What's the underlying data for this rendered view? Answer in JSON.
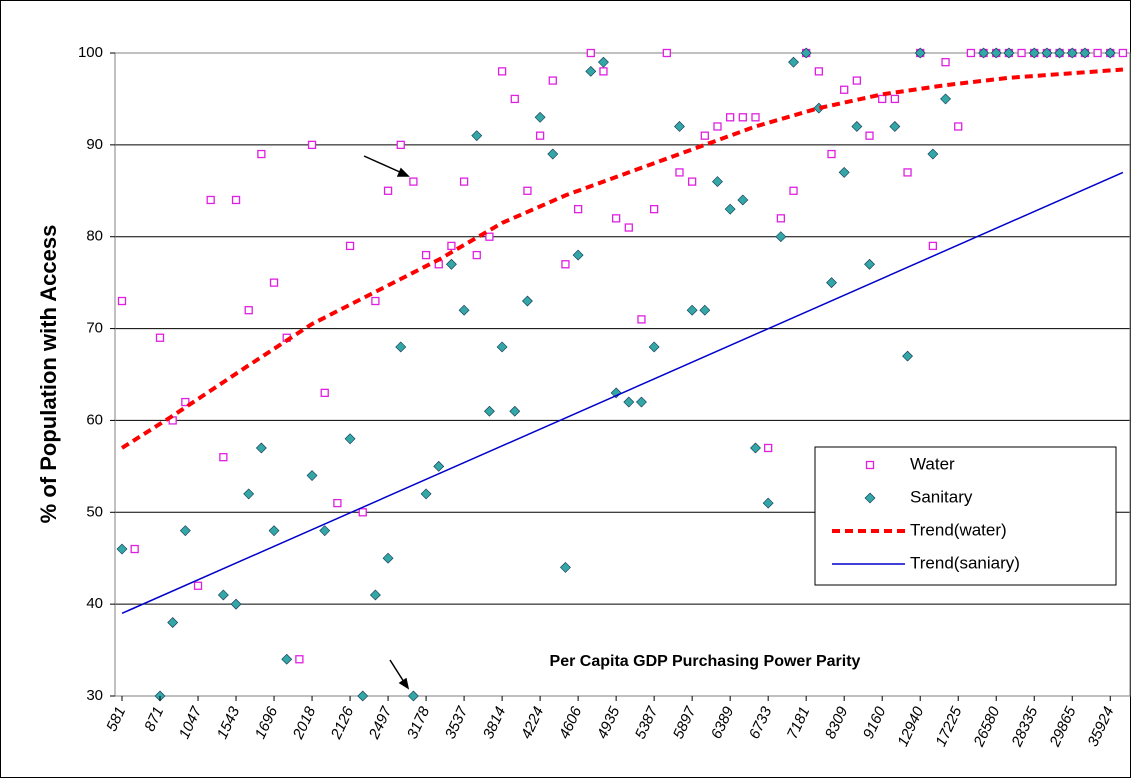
{
  "chart_data": {
    "type": "scatter",
    "y_label": "% of Population with Access",
    "annotation": "Per Capita GDP Purchasing Power Parity",
    "categories": [
      "581",
      null,
      null,
      "871",
      null,
      null,
      "1047",
      null,
      null,
      "1543",
      null,
      null,
      "1696",
      null,
      null,
      "2018",
      null,
      null,
      "2126",
      null,
      null,
      "2497",
      null,
      null,
      "3178",
      null,
      null,
      "3537",
      null,
      null,
      "3814",
      null,
      null,
      "4224",
      null,
      null,
      "4606",
      null,
      null,
      "4935",
      null,
      null,
      "5387",
      null,
      null,
      "5897",
      null,
      null,
      "6389",
      null,
      null,
      "6733",
      null,
      null,
      "7181",
      null,
      null,
      "8309",
      null,
      null,
      "9160",
      null,
      null,
      "12940",
      null,
      null,
      "17225",
      null,
      null,
      "26580",
      null,
      null,
      "28335",
      null,
      null,
      "29865",
      null,
      null,
      "35924",
      null
    ],
    "ylim": [
      30,
      100
    ],
    "yticks": [
      30,
      40,
      50,
      60,
      70,
      80,
      90,
      100
    ],
    "grid": true,
    "series": [
      {
        "name": "Water",
        "type": "scatter",
        "marker": "square",
        "color": "#e020e0",
        "values": [
          73,
          46,
          null,
          69,
          60,
          62,
          42,
          84,
          56,
          84,
          72,
          89,
          75,
          69,
          34,
          90,
          63,
          51,
          79,
          50,
          73,
          85,
          90,
          86,
          78,
          77,
          79,
          86,
          78,
          80,
          98,
          95,
          85,
          91,
          97,
          77,
          83,
          100,
          98,
          82,
          81,
          71,
          83,
          100,
          87,
          86,
          91,
          92,
          93,
          93,
          93,
          57,
          82,
          85,
          100,
          98,
          89,
          96,
          97,
          91,
          95,
          95,
          87,
          100,
          79,
          99,
          92,
          100,
          100,
          100,
          100,
          100,
          100,
          100,
          100,
          100,
          100,
          100,
          100,
          100
        ]
      },
      {
        "name": "Sanitary",
        "type": "scatter",
        "marker": "diamond",
        "color": "#33a6a6",
        "values": [
          46,
          null,
          null,
          30,
          38,
          48,
          null,
          null,
          41,
          40,
          52,
          57,
          48,
          34,
          null,
          54,
          48,
          null,
          58,
          30,
          41,
          45,
          68,
          30,
          52,
          55,
          77,
          72,
          91,
          61,
          68,
          61,
          73,
          93,
          89,
          44,
          78,
          98,
          99,
          63,
          62,
          62,
          68,
          null,
          92,
          72,
          72,
          86,
          83,
          84,
          57,
          51,
          80,
          99,
          100,
          94,
          75,
          87,
          92,
          77,
          null,
          92,
          67,
          100,
          89,
          95,
          null,
          null,
          100,
          100,
          100,
          null,
          100,
          100,
          100,
          100,
          100,
          null,
          100,
          null
        ]
      },
      {
        "name": "Trend(water)",
        "type": "line",
        "dashed": true,
        "color": "#ff0000",
        "x": [
          0,
          4,
          10,
          15,
          20,
          25,
          30,
          35,
          40,
          45,
          50,
          55,
          60,
          65,
          70,
          75,
          79
        ],
        "values": [
          57,
          60.5,
          66,
          70.5,
          74,
          77.5,
          81.5,
          84.5,
          87,
          89.5,
          92,
          94,
          95.5,
          96.5,
          97.3,
          97.8,
          98.2
        ]
      },
      {
        "name": "Trend(saniary)",
        "type": "line",
        "dashed": false,
        "color": "#0000cc",
        "x": [
          0,
          79
        ],
        "values": [
          39,
          87
        ]
      }
    ]
  }
}
